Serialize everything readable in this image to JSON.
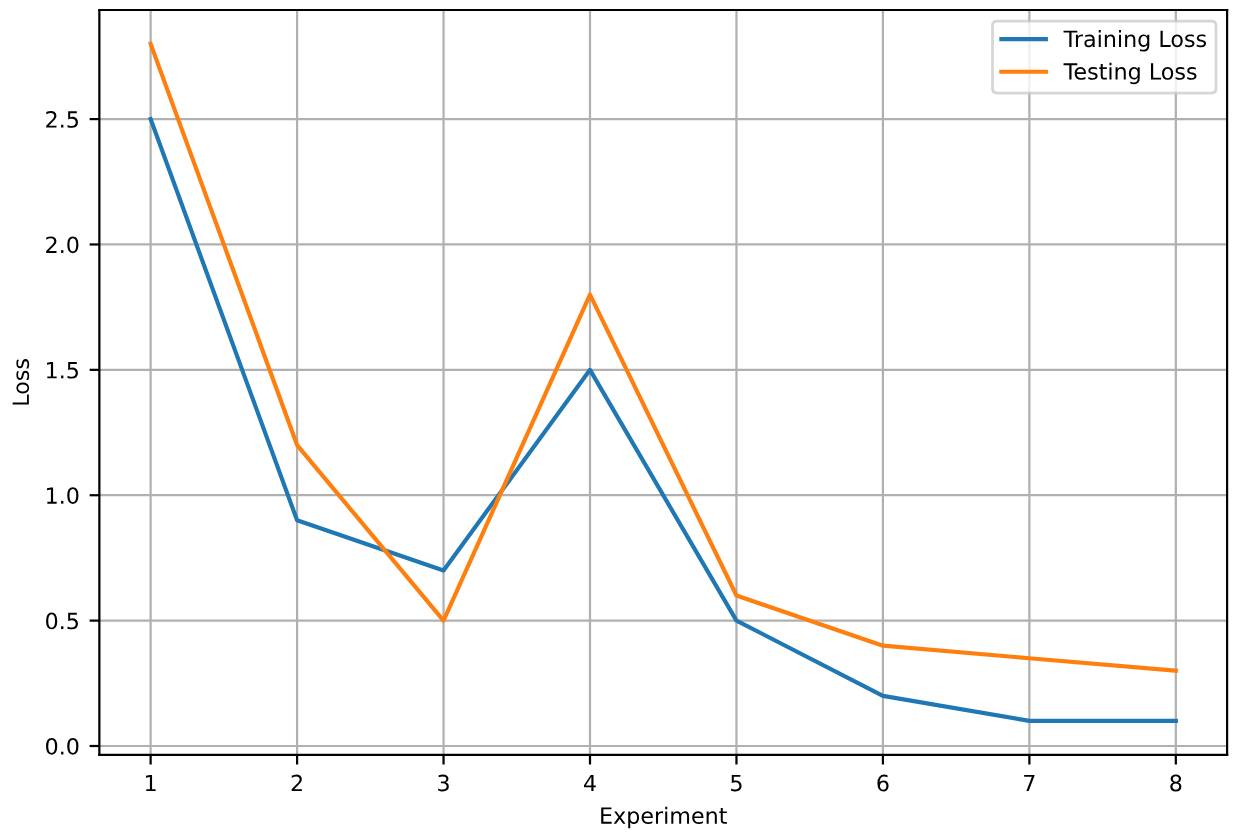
{
  "chart_data": {
    "type": "line",
    "xlabel": "Experiment",
    "ylabel": "Loss",
    "x": [
      1,
      2,
      3,
      4,
      5,
      6,
      7,
      8
    ],
    "series": [
      {
        "name": "Training Loss",
        "color": "#1f77b4",
        "values": [
          2.5,
          0.9,
          0.7,
          1.5,
          0.5,
          0.2,
          0.1,
          0.1
        ]
      },
      {
        "name": "Testing Loss",
        "color": "#ff7f0e",
        "values": [
          2.8,
          1.2,
          0.5,
          1.8,
          0.6,
          0.4,
          0.35,
          0.3
        ]
      }
    ],
    "xlim": [
      0.65,
      8.35
    ],
    "ylim": [
      -0.035,
      2.935
    ],
    "xticks": [
      1,
      2,
      3,
      4,
      5,
      6,
      7,
      8
    ],
    "yticks": [
      {
        "value": 0,
        "label": "0.0"
      },
      {
        "value": 0.5,
        "label": "0.5"
      },
      {
        "value": 1,
        "label": "1.0"
      },
      {
        "value": 1.5,
        "label": "1.5"
      },
      {
        "value": 2,
        "label": "2.0"
      },
      {
        "value": 2.5,
        "label": "2.5"
      }
    ],
    "grid": true,
    "legend": "top right"
  }
}
